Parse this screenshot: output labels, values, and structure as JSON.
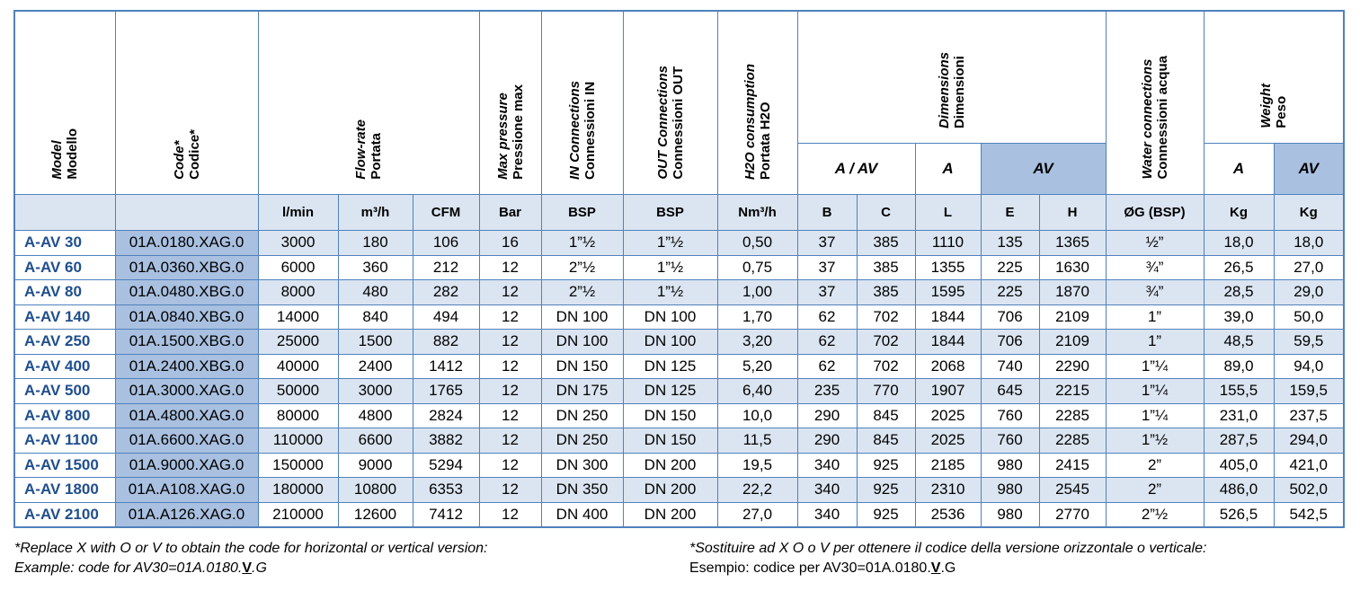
{
  "headers": {
    "model": {
      "it": "Model",
      "rg": "Modello"
    },
    "code": {
      "it": "Code*",
      "rg": "Codice*"
    },
    "flow": {
      "it": "Flow-rate",
      "rg": "Portata"
    },
    "pressure": {
      "it": "Max pressure",
      "rg": "Pressione max"
    },
    "in_conn": {
      "it": "IN Connections",
      "rg": "Connessioni IN"
    },
    "out_conn": {
      "it": "OUT Connections",
      "rg": "Connessioni OUT"
    },
    "h2o": {
      "it": "H2O consumption",
      "rg": "Portata H2O"
    },
    "dimensions": {
      "it": "Dimensions",
      "rg": "Dimensioni"
    },
    "water": {
      "it": "Water connections",
      "rg": "Connessioni acqua"
    },
    "weight": {
      "it": "Weight",
      "rg": "Peso"
    }
  },
  "subheaders": {
    "dim_a_av": "A / AV",
    "dim_a": "A",
    "dim_av": "AV",
    "w_a": "A",
    "w_av": "AV"
  },
  "units": [
    "l/min",
    "m³/h",
    "CFM",
    "Bar",
    "BSP",
    "BSP",
    "Nm³/h",
    "B",
    "C",
    "L",
    "E",
    "H",
    "ØG (BSP)",
    "Kg",
    "Kg"
  ],
  "rows": [
    [
      "A-AV 30",
      "01A.0180.XAG.0",
      "3000",
      "180",
      "106",
      "16",
      "1”½",
      "1”½",
      "0,50",
      "37",
      "385",
      "1110",
      "135",
      "1365",
      "½”",
      "18,0",
      "18,0"
    ],
    [
      "A-AV 60",
      "01A.0360.XBG.0",
      "6000",
      "360",
      "212",
      "12",
      "2”½",
      "1”½",
      "0,75",
      "37",
      "385",
      "1355",
      "225",
      "1630",
      "¾”",
      "26,5",
      "27,0"
    ],
    [
      "A-AV 80",
      "01A.0480.XBG.0",
      "8000",
      "480",
      "282",
      "12",
      "2”½",
      "1”½",
      "1,00",
      "37",
      "385",
      "1595",
      "225",
      "1870",
      "¾”",
      "28,5",
      "29,0"
    ],
    [
      "A-AV 140",
      "01A.0840.XBG.0",
      "14000",
      "840",
      "494",
      "12",
      "DN 100",
      "DN 100",
      "1,70",
      "62",
      "702",
      "1844",
      "706",
      "2109",
      "1”",
      "39,0",
      "50,0"
    ],
    [
      "A-AV 250",
      "01A.1500.XBG.0",
      "25000",
      "1500",
      "882",
      "12",
      "DN 100",
      "DN 100",
      "3,20",
      "62",
      "702",
      "1844",
      "706",
      "2109",
      "1”",
      "48,5",
      "59,5"
    ],
    [
      "A-AV 400",
      "01A.2400.XBG.0",
      "40000",
      "2400",
      "1412",
      "12",
      "DN 150",
      "DN 125",
      "5,20",
      "62",
      "702",
      "2068",
      "740",
      "2290",
      "1”¼",
      "89,0",
      "94,0"
    ],
    [
      "A-AV 500",
      "01A.3000.XAG.0",
      "50000",
      "3000",
      "1765",
      "12",
      "DN 175",
      "DN 125",
      "6,40",
      "235",
      "770",
      "1907",
      "645",
      "2215",
      "1”¼",
      "155,5",
      "159,5"
    ],
    [
      "A-AV 800",
      "01A.4800.XAG.0",
      "80000",
      "4800",
      "2824",
      "12",
      "DN 250",
      "DN 150",
      "10,0",
      "290",
      "845",
      "2025",
      "760",
      "2285",
      "1”¼",
      "231,0",
      "237,5"
    ],
    [
      "A-AV 1100",
      "01A.6600.XAG.0",
      "110000",
      "6600",
      "3882",
      "12",
      "DN 250",
      "DN 150",
      "11,5",
      "290",
      "845",
      "2025",
      "760",
      "2285",
      "1”½",
      "287,5",
      "294,0"
    ],
    [
      "A-AV 1500",
      "01A.9000.XAG.0",
      "150000",
      "9000",
      "5294",
      "12",
      "DN 300",
      "DN 200",
      "19,5",
      "340",
      "925",
      "2185",
      "980",
      "2415",
      "2”",
      "405,0",
      "421,0"
    ],
    [
      "A-AV 1800",
      "01A.A108.XAG.0",
      "180000",
      "10800",
      "6353",
      "12",
      "DN 350",
      "DN 200",
      "22,2",
      "340",
      "925",
      "2310",
      "980",
      "2545",
      "2”",
      "486,0",
      "502,0"
    ],
    [
      "A-AV 2100",
      "01A.A126.XAG.0",
      "210000",
      "12600",
      "7412",
      "12",
      "DN 400",
      "DN 200",
      "27,0",
      "340",
      "925",
      "2536",
      "980",
      "2770",
      "2”½",
      "526,5",
      "542,5"
    ]
  ],
  "footnote_en": {
    "line1": "*Replace X with O or V to obtain the code for horizontal or vertical version:",
    "line2_pre": "Example: code for AV30=01A.0180.",
    "line2_key": "V",
    "line2_post": ".G"
  },
  "footnote_it": {
    "line1": "*Sostituire ad X O o V per ottenere il codice della versione orizzontale o verticale:",
    "line2_pre": "Esempio: codice per AV30=01A.0180.",
    "line2_key": "V",
    "line2_post": ".G"
  },
  "colors": {
    "border": "#4f81bd",
    "band": "#dbe5f1",
    "code_bg": "#a9c0e0",
    "model_text": "#1f4e8d"
  }
}
